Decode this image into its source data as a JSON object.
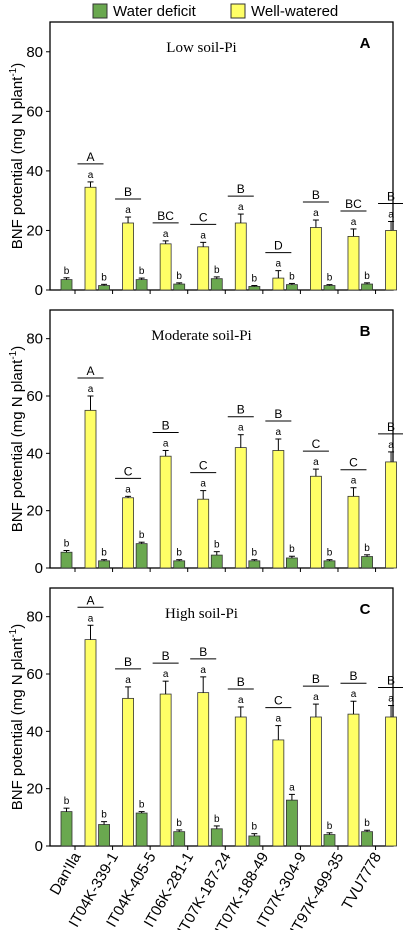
{
  "legend": [
    {
      "label": "Water deficit",
      "color": "#6aa84f"
    },
    {
      "label": "Well-watered",
      "color": "#ffff66"
    }
  ],
  "ylabel_main": "BNF potential (mg N plant",
  "ylabel_sup": "-1",
  "ylabel_close": ")",
  "chart_data": [
    {
      "type": "bar",
      "panel": "A",
      "title": "Low soil-Pi",
      "categories": [
        "Dan'Ila",
        "IT04K-339-1",
        "IT04K-405-5",
        "IT06K-281-1",
        "IT07K-187-24",
        "IT07K-188-49",
        "IT07K-304-9",
        "IT97K-499-35",
        "TVU7778"
      ],
      "ylim": [
        0,
        90
      ],
      "yticks": [
        0,
        20,
        40,
        60,
        80
      ],
      "series": [
        {
          "name": "Water deficit",
          "values": [
            3.5,
            1.5,
            3.5,
            2,
            3.8,
            1.2,
            1.8,
            1.5,
            2
          ],
          "errors": [
            0.6,
            0.4,
            0.5,
            0.4,
            0.6,
            0.3,
            0.4,
            0.3,
            0.4
          ],
          "labels": [
            "b",
            "b",
            "b",
            "b",
            "b",
            "b",
            "b",
            "b",
            "b"
          ]
        },
        {
          "name": "Well-watered",
          "values": [
            34.5,
            22.5,
            15.5,
            14.5,
            22.5,
            4,
            21,
            18,
            20
          ],
          "errors": [
            1.8,
            2,
            1,
            1.5,
            3,
            2.5,
            2.5,
            2.5,
            3
          ],
          "labels": [
            "a",
            "a",
            "a",
            "a",
            "a",
            "a",
            "a",
            "a",
            "a"
          ]
        }
      ],
      "group_letters": [
        "A",
        "B",
        "BC",
        "C",
        "B",
        "D",
        "B",
        "BC",
        "B"
      ]
    },
    {
      "type": "bar",
      "panel": "B",
      "title": "Moderate soil-Pi",
      "categories": [
        "Dan'Ila",
        "IT04K-339-1",
        "IT04K-405-5",
        "IT06K-281-1",
        "IT07K-187-24",
        "IT07K-188-49",
        "IT07K-304-9",
        "IT97K-499-35",
        "TVU7778"
      ],
      "ylim": [
        0,
        90
      ],
      "yticks": [
        0,
        20,
        40,
        60,
        80
      ],
      "series": [
        {
          "name": "Water deficit",
          "values": [
            5.5,
            2.5,
            8.5,
            2.5,
            4.5,
            2.5,
            3.5,
            2.5,
            4
          ],
          "errors": [
            0.6,
            0.4,
            0.5,
            0.4,
            1.2,
            0.4,
            0.6,
            0.4,
            0.6
          ],
          "labels": [
            "b",
            "b",
            "b",
            "b",
            "b",
            "b",
            "b",
            "b",
            "b"
          ]
        },
        {
          "name": "Well-watered",
          "values": [
            55,
            24.5,
            39,
            24,
            42,
            41,
            32,
            25,
            37
          ],
          "errors": [
            5,
            0.5,
            2,
            3,
            4.5,
            4,
            2.5,
            3,
            3.5
          ],
          "labels": [
            "a",
            "a",
            "a",
            "a",
            "a",
            "a",
            "a",
            "a",
            "a"
          ]
        }
      ],
      "group_letters": [
        "A",
        "C",
        "B",
        "C",
        "B",
        "B",
        "C",
        "C",
        "B"
      ]
    },
    {
      "type": "bar",
      "panel": "C",
      "title": "High soil-Pi",
      "categories": [
        "Dan'Ila",
        "IT04K-339-1",
        "IT04K-405-5",
        "IT06K-281-1",
        "IT07K-187-24",
        "IT07K-188-49",
        "IT07K-304-9",
        "IT97K-499-35",
        "TVU7778"
      ],
      "ylim": [
        0,
        90
      ],
      "yticks": [
        0,
        20,
        40,
        60,
        80
      ],
      "series": [
        {
          "name": "Water deficit",
          "values": [
            12,
            7.5,
            11.5,
            5,
            6,
            3.5,
            16,
            4,
            5
          ],
          "errors": [
            1.2,
            1,
            0.5,
            0.6,
            1,
            0.8,
            2,
            0.6,
            0.5
          ],
          "labels": [
            "b",
            "b",
            "b",
            "b",
            "b",
            "b",
            "a",
            "b",
            "b"
          ]
        },
        {
          "name": "Well-watered",
          "values": [
            72,
            51.5,
            53,
            53.5,
            45,
            37,
            45,
            46,
            45
          ],
          "errors": [
            5,
            4,
            4.5,
            5.5,
            3.5,
            5,
            4.5,
            4.5,
            4
          ],
          "labels": [
            "a",
            "a",
            "a",
            "a",
            "a",
            "a",
            "a",
            "a",
            "a"
          ]
        }
      ],
      "group_letters": [
        "A",
        "B",
        "B",
        "B",
        "B",
        "C",
        "B",
        "B",
        "B"
      ]
    }
  ]
}
